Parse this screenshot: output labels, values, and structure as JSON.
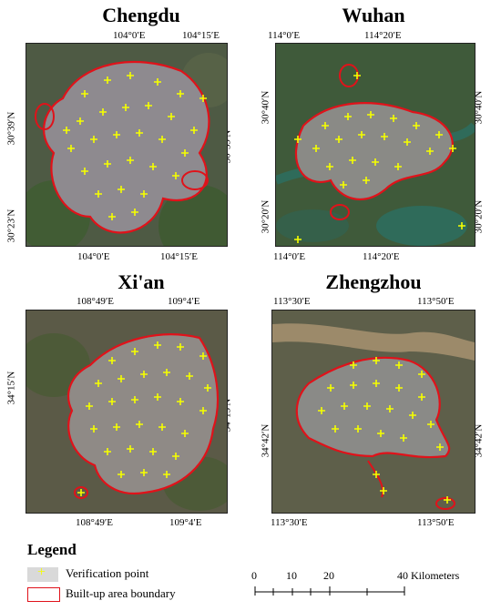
{
  "maps": [
    {
      "id": "chengdu",
      "title": "Chengdu",
      "top_ticks": [
        "104°0′E",
        "104°15′E"
      ],
      "bottom_ticks": [
        "104°0′E",
        "104°15′E"
      ],
      "left_ticks": [
        "30°39′N",
        "30°23′N"
      ],
      "right_ticks": [
        "30°39′N"
      ],
      "colors": {
        "base": "#4e5a44",
        "urban": "#8e8a8f",
        "vegetation": "#3c5d2e",
        "boundary": "#e0121a",
        "point": "#f6ff00"
      }
    },
    {
      "id": "wuhan",
      "title": "Wuhan",
      "top_ticks": [
        "114°0′E",
        "114°20′E"
      ],
      "bottom_ticks": [
        "114°0′E",
        "114°20′E"
      ],
      "left_ticks": [
        "30°40′N",
        "30°20′N"
      ],
      "right_ticks": [
        "30°40′N",
        "30°20′N"
      ],
      "colors": {
        "base": "#3f5a3a",
        "urban": "#8a8a86",
        "water": "#2f6b5a",
        "boundary": "#e0121a",
        "point": "#f6ff00"
      }
    },
    {
      "id": "xian",
      "title": "Xi'an",
      "top_ticks": [
        "108°49′E",
        "109°4′E"
      ],
      "bottom_ticks": [
        "108°49′E",
        "109°4′E"
      ],
      "left_ticks": [
        "34°15′N"
      ],
      "right_ticks": [
        "34°15′N"
      ],
      "colors": {
        "base": "#5b5a47",
        "urban": "#8f8a86",
        "vegetation": "#4a5a34",
        "boundary": "#e0121a",
        "point": "#f6ff00"
      }
    },
    {
      "id": "zhengzhou",
      "title": "Zhengzhou",
      "top_ticks": [
        "113°30′E",
        "113°50′E"
      ],
      "bottom_ticks": [
        "113°30′E",
        "113°50′E"
      ],
      "left_ticks": [
        "34°42′N"
      ],
      "right_ticks": [
        "34°42′N"
      ],
      "colors": {
        "base": "#5e5f4a",
        "urban": "#8a8a87",
        "river": "#9c8a6a",
        "boundary": "#e0121a",
        "point": "#f6ff00"
      }
    }
  ],
  "legend": {
    "title": "Legend",
    "items": [
      {
        "label": "Verification point",
        "icon": "yellow-cross-point"
      },
      {
        "label": "Built-up area boundary",
        "icon": "red-outline-box"
      }
    ]
  },
  "scale_bar": {
    "labels": [
      "0",
      "10",
      "20",
      "40 Kilometers"
    ]
  }
}
